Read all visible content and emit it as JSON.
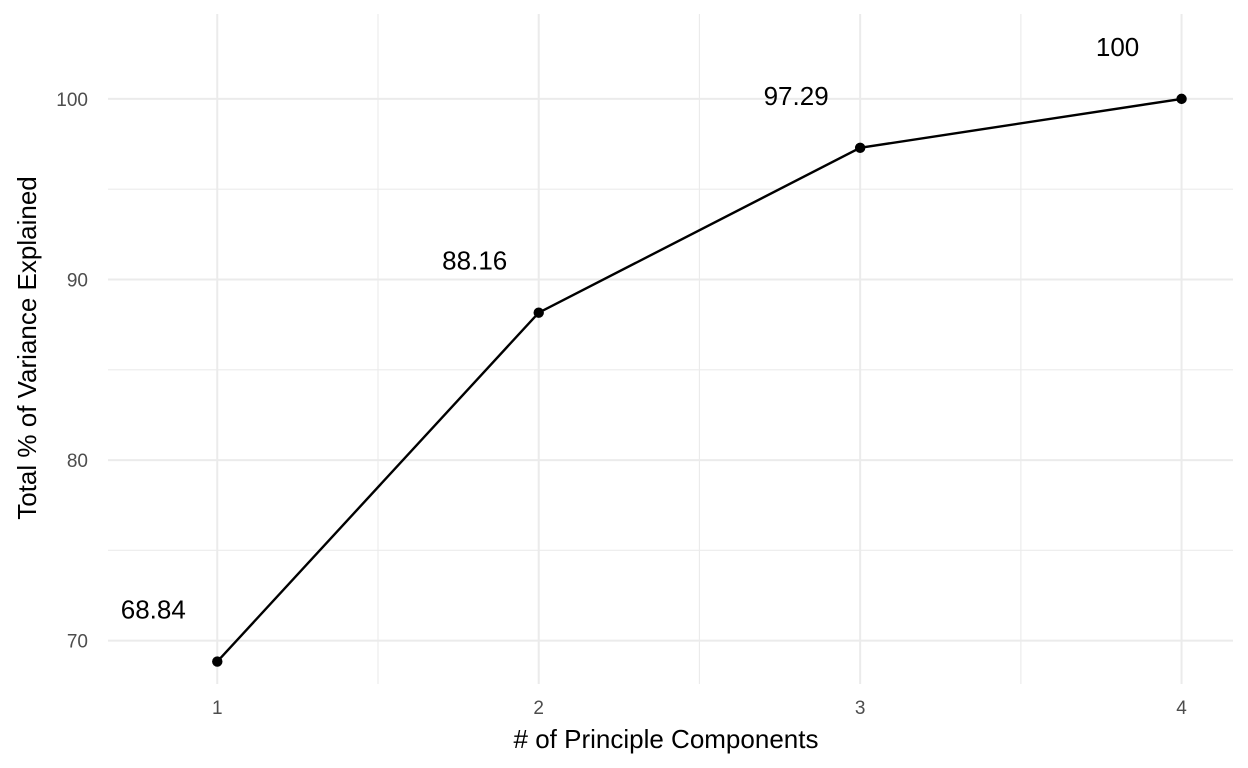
{
  "chart_data": {
    "type": "line",
    "title": "",
    "xlabel": "# of Principle Components",
    "ylabel": "Total % of Variance Explained",
    "x": [
      1,
      2,
      3,
      4
    ],
    "y": [
      68.84,
      88.16,
      97.29,
      100
    ],
    "data_labels": [
      "68.84",
      "88.16",
      "97.29",
      "100"
    ],
    "x_ticks": [
      "1",
      "2",
      "3",
      "4"
    ],
    "y_ticks": [
      "70",
      "80",
      "90",
      "100"
    ],
    "xlim": [
      0.66,
      4.16
    ],
    "ylim": [
      67.6,
      104.7
    ],
    "grid": true,
    "line_color": "#000000",
    "grid_color": "#ebebeb",
    "tick_label_color": "#4d4d4d"
  }
}
